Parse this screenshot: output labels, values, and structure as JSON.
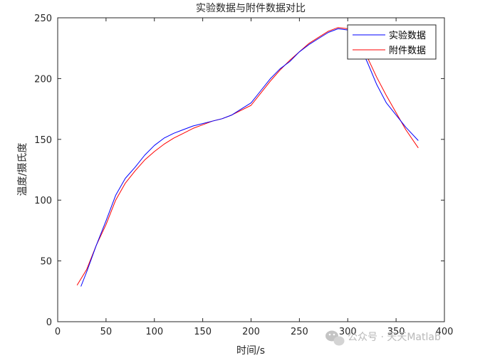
{
  "chart_data": {
    "type": "line",
    "title": "实验数据与附件数据对比",
    "xlabel": "时间/s",
    "ylabel": "温度/摄氏度",
    "xlim": [
      0,
      400
    ],
    "ylim": [
      0,
      250
    ],
    "xticks": [
      0,
      50,
      100,
      150,
      200,
      250,
      300,
      350,
      400
    ],
    "yticks": [
      0,
      50,
      100,
      150,
      200,
      250
    ],
    "grid": false,
    "legend_position": "top-right",
    "series": [
      {
        "name": "实验数据",
        "color": "#0000ff",
        "x": [
          24,
          30,
          40,
          50,
          60,
          70,
          80,
          90,
          100,
          110,
          120,
          130,
          140,
          150,
          160,
          170,
          180,
          190,
          200,
          210,
          220,
          230,
          240,
          250,
          260,
          270,
          280,
          290,
          300,
          310,
          320,
          330,
          340,
          350,
          360,
          373
        ],
        "y": [
          29,
          41,
          63,
          83,
          104,
          118,
          127,
          137,
          145,
          151,
          155,
          158,
          161,
          163,
          165,
          167,
          170,
          175,
          180,
          190,
          200,
          208,
          214,
          222,
          228,
          233,
          238,
          241,
          240,
          230,
          214,
          195,
          180,
          170,
          160,
          149
        ]
      },
      {
        "name": "附件数据",
        "color": "#ff0000",
        "x": [
          20,
          30,
          40,
          50,
          60,
          70,
          80,
          90,
          100,
          110,
          120,
          130,
          140,
          150,
          160,
          170,
          180,
          190,
          200,
          210,
          220,
          230,
          240,
          250,
          260,
          270,
          280,
          290,
          300,
          310,
          320,
          330,
          340,
          350,
          360,
          373
        ],
        "y": [
          30,
          43,
          63,
          80,
          100,
          114,
          124,
          133,
          140,
          146,
          151,
          155,
          159,
          162,
          165,
          167,
          170,
          174,
          178,
          188,
          198,
          207,
          215,
          222,
          229,
          234,
          239,
          242,
          241,
          232,
          218,
          201,
          186,
          172,
          158,
          143
        ]
      }
    ]
  },
  "watermark": {
    "icon": "wechat-icon",
    "text": "公众号 · 天天Matlab"
  }
}
